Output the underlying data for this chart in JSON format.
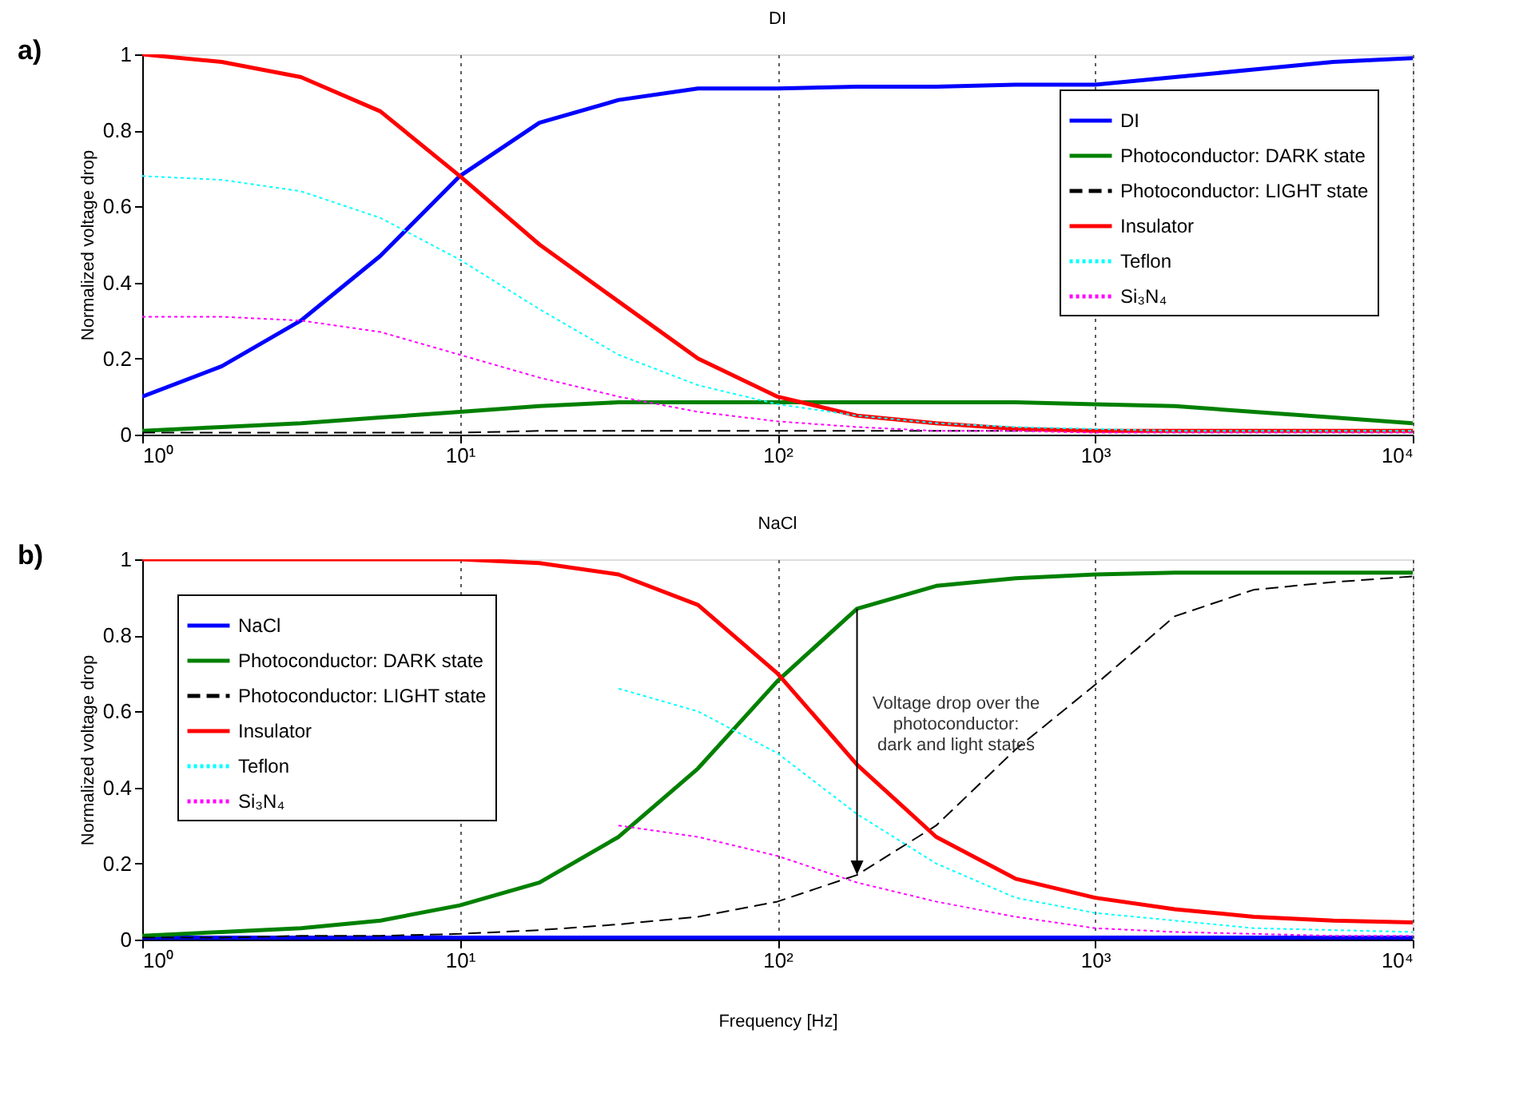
{
  "chart_data": [
    {
      "type": "line",
      "title": "DI",
      "ylabel": "Normalized voltage drop",
      "annotations": [
        "a)"
      ],
      "legend": "top right",
      "grid": "x",
      "log": "x",
      "xlim": [
        1,
        10000
      ],
      "xticks": [
        {
          "value": 1,
          "label": "10⁰"
        },
        {
          "value": 10,
          "label": "10¹"
        },
        {
          "value": 100,
          "label": "10²"
        },
        {
          "value": 1000,
          "label": "10³"
        },
        {
          "value": 10000,
          "label": "10⁴"
        }
      ],
      "ylim": [
        0,
        1
      ],
      "yticks": [
        0,
        0.2,
        0.4,
        0.6,
        0.8,
        1
      ],
      "x": [
        1,
        1.78,
        3.16,
        5.62,
        10,
        17.8,
        31.6,
        56.2,
        100,
        178,
        316,
        562,
        1000,
        1780,
        3160,
        5620,
        10000
      ],
      "series": [
        {
          "name": "DI",
          "color": "#0000ff",
          "line_style": "solid",
          "values": [
            0.1,
            0.18,
            0.3,
            0.47,
            0.68,
            0.82,
            0.88,
            0.91,
            0.91,
            0.915,
            0.915,
            0.92,
            0.92,
            0.94,
            0.96,
            0.98,
            0.99
          ]
        },
        {
          "name": "Photoconductor: DARK state",
          "color": "#008000",
          "line_style": "solid",
          "values": [
            0.01,
            0.02,
            0.03,
            0.045,
            0.06,
            0.075,
            0.085,
            0.085,
            0.085,
            0.085,
            0.085,
            0.085,
            0.08,
            0.075,
            0.06,
            0.045,
            0.03
          ]
        },
        {
          "name": "Photoconductor: LIGHT state",
          "color": "#000000",
          "line_style": "dashed",
          "values": [
            0.005,
            0.005,
            0.005,
            0.005,
            0.005,
            0.01,
            0.01,
            0.01,
            0.01,
            0.01,
            0.01,
            0.01,
            0.01,
            0.01,
            0.01,
            0.01,
            0.01
          ]
        },
        {
          "name": "Insulator",
          "color": "#ff0000",
          "line_style": "solid",
          "values": [
            1.0,
            0.98,
            0.94,
            0.85,
            0.68,
            0.5,
            0.35,
            0.2,
            0.1,
            0.05,
            0.03,
            0.015,
            0.01,
            0.01,
            0.01,
            0.01,
            0.01
          ]
        },
        {
          "name": "Teflon",
          "color": "#00ffff",
          "line_style": "dotted",
          "values": [
            0.68,
            0.67,
            0.64,
            0.57,
            0.46,
            0.33,
            0.21,
            0.13,
            0.08,
            0.05,
            0.03,
            0.02,
            0.015,
            0.01,
            0.01,
            0.01,
            0.01
          ]
        },
        {
          "name": "Si₃N₄",
          "color": "#ff00ff",
          "line_style": "dotted",
          "values": [
            0.31,
            0.31,
            0.3,
            0.27,
            0.21,
            0.15,
            0.1,
            0.06,
            0.035,
            0.02,
            0.01,
            0.01,
            0.005,
            0.005,
            0.005,
            0.005,
            0.005
          ]
        }
      ]
    },
    {
      "type": "line",
      "title": "NaCl",
      "xlabel": "Frequency [Hz]",
      "ylabel": "Normalized voltage drop",
      "legend": "top left",
      "grid": "x",
      "log": "x",
      "annotations": [
        "b)",
        "Voltage drop over the\nphotoconductor:\ndark and light states"
      ],
      "xlim": [
        1,
        10000
      ],
      "xticks": [
        {
          "value": 1,
          "label": "10⁰"
        },
        {
          "value": 10,
          "label": "10¹"
        },
        {
          "value": 100,
          "label": "10²"
        },
        {
          "value": 1000,
          "label": "10³"
        },
        {
          "value": 10000,
          "label": "10⁴"
        }
      ],
      "ylim": [
        0,
        1
      ],
      "yticks": [
        0,
        0.2,
        0.4,
        0.6,
        0.8,
        1
      ],
      "x": [
        1,
        1.78,
        3.16,
        5.62,
        10,
        17.8,
        31.6,
        56.2,
        100,
        178,
        316,
        562,
        1000,
        1780,
        3160,
        5620,
        10000
      ],
      "series": [
        {
          "name": "NaCl",
          "color": "#0000ff",
          "line_style": "solid",
          "values": [
            0.005,
            0.005,
            0.005,
            0.005,
            0.005,
            0.005,
            0.005,
            0.005,
            0.005,
            0.005,
            0.005,
            0.005,
            0.005,
            0.005,
            0.005,
            0.005,
            0.005
          ]
        },
        {
          "name": "Photoconductor: DARK state",
          "color": "#008000",
          "line_style": "solid",
          "values": [
            0.01,
            0.02,
            0.03,
            0.05,
            0.09,
            0.15,
            0.27,
            0.45,
            0.68,
            0.87,
            0.93,
            0.95,
            0.96,
            0.965,
            0.965,
            0.965,
            0.965
          ]
        },
        {
          "name": "Photoconductor: LIGHT state",
          "color": "#000000",
          "line_style": "dashed",
          "values": [
            0.005,
            0.005,
            0.01,
            0.01,
            0.015,
            0.025,
            0.04,
            0.06,
            0.1,
            0.17,
            0.3,
            0.5,
            0.67,
            0.85,
            0.92,
            0.94,
            0.955
          ]
        },
        {
          "name": "Insulator",
          "color": "#ff0000",
          "line_style": "solid",
          "values": [
            1,
            1,
            1,
            1,
            1,
            0.99,
            0.96,
            0.88,
            0.7,
            0.46,
            0.27,
            0.16,
            0.11,
            0.08,
            0.06,
            0.05,
            0.045
          ]
        },
        {
          "name": "Teflon",
          "color": "#00ffff",
          "line_style": "dotted",
          "values": [
            null,
            null,
            null,
            null,
            null,
            null,
            0.66,
            0.6,
            0.49,
            0.33,
            0.2,
            0.11,
            0.07,
            0.05,
            0.03,
            0.025,
            0.02
          ]
        },
        {
          "name": "Si₃N₄",
          "color": "#ff00ff",
          "line_style": "dotted",
          "values": [
            null,
            null,
            null,
            null,
            null,
            null,
            0.3,
            0.27,
            0.22,
            0.15,
            0.1,
            0.06,
            0.03,
            0.02,
            0.015,
            0.01,
            0.01
          ]
        }
      ]
    }
  ]
}
